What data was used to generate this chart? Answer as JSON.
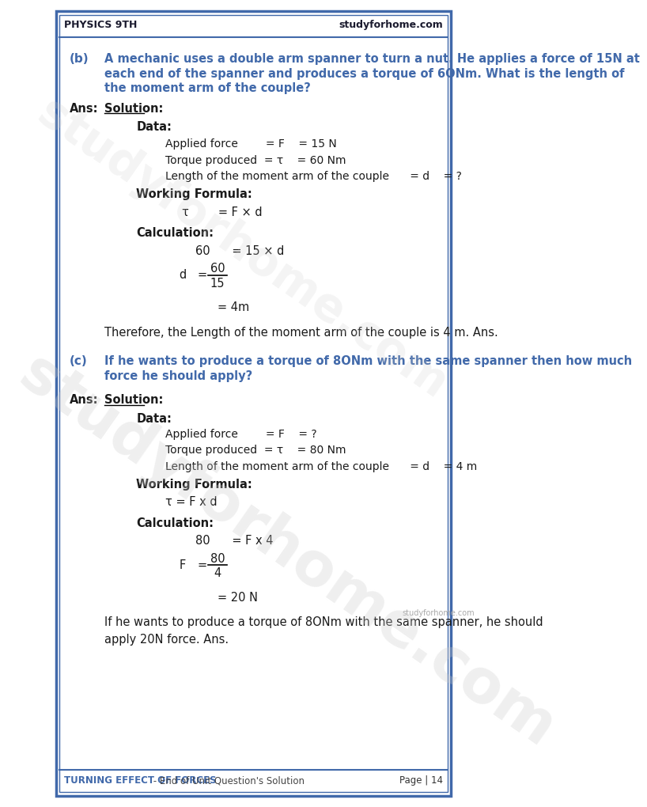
{
  "bg_color": "#ffffff",
  "border_color": "#4169aa",
  "header_text_left": "PHYSICS 9TH",
  "header_text_right": "studyforhome.com",
  "footer_left": "TURNING EFFECT OF FORCES",
  "footer_dash": " - End of Unit Question's Solution",
  "footer_right": "Page | 14",
  "watermark": "studyforhome.com",
  "part_b_label": "(b)",
  "part_b_question_lines": [
    "A mechanic uses a double arm spanner to turn a nut. He applies a force of 15N at",
    "each end of the spanner and produces a torque of 6ONm. What is the length of",
    "the moment arm of the couple?"
  ],
  "ans_label": "Ans:",
  "solution_label": "Solution:",
  "data_label_b": "Data:",
  "data_b": [
    "Applied force        = F    = 15 N",
    "Torque produced  = τ    = 60 Nm",
    "Length of the moment arm of the couple      = d    = ?"
  ],
  "wf_label_b": "Working Formula:",
  "wf_b": "τ        = F × d",
  "calc_label_b": "Calculation:",
  "therefore_b": "Therefore, the Length of the moment arm of the couple is 4 m. Ans.",
  "part_c_label": "(c)",
  "part_c_question_lines": [
    "If he wants to produce a torque of 8ONm with the same spanner then how much",
    "force he should apply?"
  ],
  "ans_label_c": "Ans:",
  "solution_label_c": "Solution:",
  "data_label_c": "Data:",
  "data_c": [
    "Applied force        = F    = ?",
    "Torque produced  = τ    = 80 Nm",
    "Length of the moment arm of the couple      = d    = 4 m"
  ],
  "wf_label_c": "Working Formula:",
  "wf_c": "τ = F x d",
  "calc_label_c": "Calculation:",
  "therefore_c_lines": [
    "If he wants to produce a torque of 8ONm with the same spanner, he should",
    "apply 20N force. Ans."
  ],
  "small_watermark": "studyforhome.com"
}
